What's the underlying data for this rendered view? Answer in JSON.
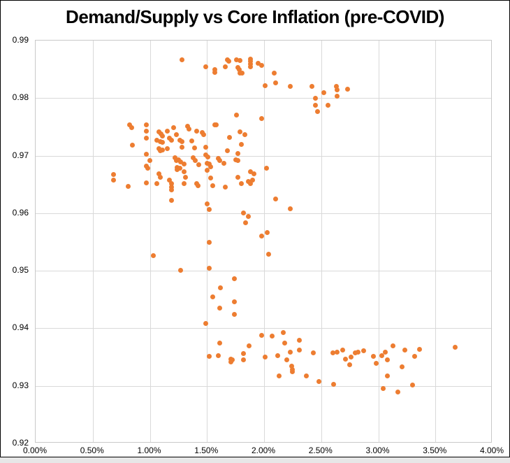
{
  "title": "Demand/Supply vs Core Inflation (pre-COVID)",
  "colors": {
    "marker": "#ED7D31",
    "gridline": "#D9D9D9",
    "plot_border": "#C9C9C9",
    "frame_border": "#000000",
    "background": "#FFFFFF",
    "worksheet_strip": "#E7E7E7"
  },
  "chart_data": {
    "type": "scatter",
    "title": "Demand/Supply vs Core Inflation (pre-COVID)",
    "xlabel": "",
    "ylabel": "",
    "x_tick_labels": [
      "0.00%",
      "0.50%",
      "1.00%",
      "1.50%",
      "2.00%",
      "2.50%",
      "3.00%",
      "3.50%",
      "4.00%"
    ],
    "y_tick_labels": [
      "0.99",
      "0.98",
      "0.97",
      "0.96",
      "0.95",
      "0.94",
      "0.93",
      "0.92"
    ],
    "xlim_percent": [
      0,
      4
    ],
    "ylim": [
      0.92,
      0.99
    ],
    "grid": true,
    "legend": false,
    "marker_color": "#ED7D31",
    "points": [
      [
        1.28,
        0.9866
      ],
      [
        1.49,
        0.9854
      ],
      [
        1.57,
        0.985
      ],
      [
        1.57,
        0.9845
      ],
      [
        1.66,
        0.9855
      ],
      [
        1.68,
        0.9866
      ],
      [
        1.69,
        0.9864
      ],
      [
        1.76,
        0.9867
      ],
      [
        1.79,
        0.9865
      ],
      [
        1.77,
        0.9853
      ],
      [
        1.78,
        0.9849
      ],
      [
        1.79,
        0.9844
      ],
      [
        1.81,
        0.9843
      ],
      [
        1.88,
        0.9868
      ],
      [
        1.88,
        0.9864
      ],
      [
        1.88,
        0.9859
      ],
      [
        1.88,
        0.9855
      ],
      [
        1.95,
        0.986
      ],
      [
        1.98,
        0.9857
      ],
      [
        2.09,
        0.9844
      ],
      [
        2.01,
        0.9822
      ],
      [
        2.1,
        0.9826
      ],
      [
        2.23,
        0.9821
      ],
      [
        2.42,
        0.9821
      ],
      [
        2.45,
        0.98
      ],
      [
        2.45,
        0.9788
      ],
      [
        2.47,
        0.9777
      ],
      [
        2.52,
        0.9809
      ],
      [
        2.56,
        0.9787
      ],
      [
        2.63,
        0.982
      ],
      [
        2.64,
        0.9814
      ],
      [
        2.64,
        0.9803
      ],
      [
        2.73,
        0.9816
      ],
      [
        1.76,
        0.977
      ],
      [
        1.98,
        0.9764
      ],
      [
        0.82,
        0.9754
      ],
      [
        0.84,
        0.9749
      ],
      [
        0.97,
        0.9753
      ],
      [
        0.97,
        0.9743
      ],
      [
        0.85,
        0.9718
      ],
      [
        0.97,
        0.973
      ],
      [
        0.97,
        0.9702
      ],
      [
        1.0,
        0.9691
      ],
      [
        0.97,
        0.9682
      ],
      [
        0.98,
        0.9678
      ],
      [
        1.08,
        0.9741
      ],
      [
        1.1,
        0.9738
      ],
      [
        1.11,
        0.9734
      ],
      [
        1.15,
        0.9743
      ],
      [
        1.21,
        0.9749
      ],
      [
        1.23,
        0.9736
      ],
      [
        1.33,
        0.9751
      ],
      [
        1.34,
        0.9746
      ],
      [
        1.41,
        0.9743
      ],
      [
        1.46,
        0.974
      ],
      [
        1.47,
        0.9737
      ],
      [
        1.57,
        0.9753
      ],
      [
        1.58,
        0.9754
      ],
      [
        1.7,
        0.9732
      ],
      [
        1.79,
        0.9741
      ],
      [
        1.83,
        0.9737
      ],
      [
        1.06,
        0.9727
      ],
      [
        1.09,
        0.9725
      ],
      [
        1.11,
        0.9723
      ],
      [
        1.17,
        0.973
      ],
      [
        1.19,
        0.9727
      ],
      [
        1.26,
        0.9727
      ],
      [
        1.28,
        0.9724
      ],
      [
        1.28,
        0.9715
      ],
      [
        1.37,
        0.9726
      ],
      [
        1.39,
        0.9714
      ],
      [
        1.49,
        0.9715
      ],
      [
        1.68,
        0.9708
      ],
      [
        1.77,
        0.9704
      ],
      [
        1.8,
        0.972
      ],
      [
        1.08,
        0.9712
      ],
      [
        1.09,
        0.9708
      ],
      [
        1.11,
        0.971
      ],
      [
        1.15,
        0.9712
      ],
      [
        1.22,
        0.9696
      ],
      [
        1.23,
        0.9691
      ],
      [
        1.25,
        0.9693
      ],
      [
        1.27,
        0.9689
      ],
      [
        1.24,
        0.968
      ],
      [
        1.3,
        0.9686
      ],
      [
        1.38,
        0.9696
      ],
      [
        1.4,
        0.9691
      ],
      [
        1.43,
        0.9684
      ],
      [
        1.49,
        0.9701
      ],
      [
        1.51,
        0.9698
      ],
      [
        1.5,
        0.9687
      ],
      [
        1.52,
        0.9685
      ],
      [
        1.53,
        0.9681
      ],
      [
        1.6,
        0.9695
      ],
      [
        1.61,
        0.9691
      ],
      [
        1.65,
        0.9687
      ],
      [
        1.75,
        0.9693
      ],
      [
        1.77,
        0.9691
      ],
      [
        0.68,
        0.9667
      ],
      [
        0.68,
        0.9657
      ],
      [
        0.81,
        0.9647
      ],
      [
        0.97,
        0.9653
      ],
      [
        1.06,
        0.9651
      ],
      [
        1.08,
        0.9668
      ],
      [
        1.09,
        0.9663
      ],
      [
        1.17,
        0.9657
      ],
      [
        1.19,
        0.9651
      ],
      [
        1.19,
        0.9646
      ],
      [
        1.19,
        0.964
      ],
      [
        1.24,
        0.9676
      ],
      [
        1.26,
        0.9678
      ],
      [
        1.3,
        0.9672
      ],
      [
        1.31,
        0.9663
      ],
      [
        1.3,
        0.9651
      ],
      [
        1.41,
        0.9652
      ],
      [
        1.42,
        0.9648
      ],
      [
        1.5,
        0.9675
      ],
      [
        1.53,
        0.9661
      ],
      [
        1.55,
        0.9648
      ],
      [
        1.66,
        0.9646
      ],
      [
        1.77,
        0.9663
      ],
      [
        1.8,
        0.9651
      ],
      [
        1.86,
        0.9655
      ],
      [
        1.88,
        0.9652
      ],
      [
        1.9,
        0.9657
      ],
      [
        1.88,
        0.9672
      ],
      [
        1.91,
        0.9669
      ],
      [
        2.02,
        0.9678
      ],
      [
        1.19,
        0.9622
      ],
      [
        1.5,
        0.9616
      ],
      [
        1.52,
        0.9607
      ],
      [
        2.1,
        0.9625
      ],
      [
        2.23,
        0.9608
      ],
      [
        1.82,
        0.96
      ],
      [
        1.86,
        0.9594
      ],
      [
        1.84,
        0.9583
      ],
      [
        1.52,
        0.955
      ],
      [
        1.03,
        0.9526
      ],
      [
        1.27,
        0.9501
      ],
      [
        1.52,
        0.9504
      ],
      [
        1.98,
        0.956
      ],
      [
        2.03,
        0.9566
      ],
      [
        2.04,
        0.9529
      ],
      [
        1.74,
        0.9486
      ],
      [
        1.62,
        0.9471
      ],
      [
        1.55,
        0.9455
      ],
      [
        1.74,
        0.9446
      ],
      [
        1.61,
        0.9435
      ],
      [
        1.74,
        0.9424
      ],
      [
        1.49,
        0.9408
      ],
      [
        1.61,
        0.9375
      ],
      [
        1.52,
        0.9351
      ],
      [
        1.6,
        0.9352
      ],
      [
        1.71,
        0.9347
      ],
      [
        1.72,
        0.9345
      ],
      [
        1.71,
        0.9341
      ],
      [
        1.82,
        0.9356
      ],
      [
        1.82,
        0.9345
      ],
      [
        1.87,
        0.9369
      ],
      [
        1.98,
        0.9388
      ],
      [
        2.01,
        0.935
      ],
      [
        2.07,
        0.9386
      ],
      [
        2.12,
        0.9353
      ],
      [
        2.13,
        0.9317
      ],
      [
        2.17,
        0.9393
      ],
      [
        2.18,
        0.9375
      ],
      [
        2.2,
        0.9345
      ],
      [
        2.23,
        0.9359
      ],
      [
        2.24,
        0.9334
      ],
      [
        2.25,
        0.9328
      ],
      [
        2.25,
        0.9324
      ],
      [
        2.31,
        0.9379
      ],
      [
        2.31,
        0.9362
      ],
      [
        2.37,
        0.9317
      ],
      [
        2.43,
        0.9357
      ],
      [
        2.48,
        0.9308
      ],
      [
        2.6,
        0.9357
      ],
      [
        2.61,
        0.9303
      ],
      [
        2.64,
        0.9359
      ],
      [
        2.69,
        0.9362
      ],
      [
        2.71,
        0.9347
      ],
      [
        2.75,
        0.9337
      ],
      [
        2.76,
        0.935
      ],
      [
        2.8,
        0.9357
      ],
      [
        2.82,
        0.9358
      ],
      [
        2.87,
        0.9361
      ],
      [
        2.96,
        0.9351
      ],
      [
        2.98,
        0.9339
      ],
      [
        3.03,
        0.9353
      ],
      [
        3.06,
        0.9358
      ],
      [
        3.08,
        0.9345
      ],
      [
        3.13,
        0.9369
      ],
      [
        3.08,
        0.9317
      ],
      [
        3.04,
        0.9296
      ],
      [
        3.17,
        0.9289
      ],
      [
        3.21,
        0.9333
      ],
      [
        3.23,
        0.9362
      ],
      [
        3.3,
        0.9302
      ],
      [
        3.32,
        0.9351
      ],
      [
        3.36,
        0.9363
      ],
      [
        3.67,
        0.9367
      ]
    ]
  }
}
